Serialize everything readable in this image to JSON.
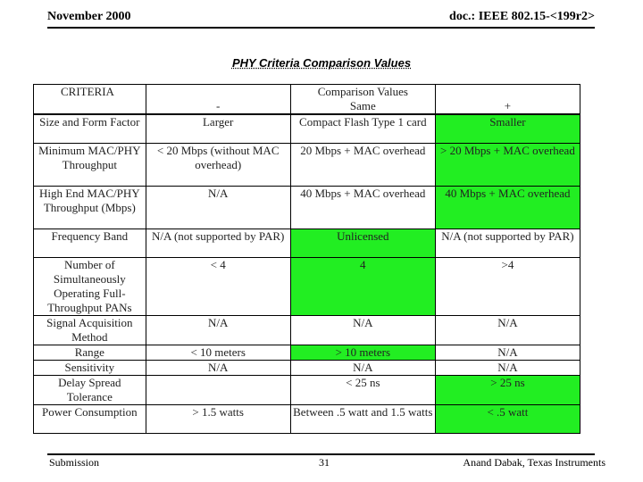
{
  "header": {
    "date": "November 2000",
    "doc_id": "doc.: IEEE 802.15-<199r2>"
  },
  "title": "PHY Criteria Comparison Values",
  "table": {
    "criteria_header": "CRITERIA",
    "comparison_header": "Comparison Values",
    "columns": [
      "-",
      "Same",
      "+"
    ],
    "rows": [
      {
        "criteria": "Size and Form Factor",
        "minus": "Larger",
        "same": "Compact Flash Type 1 card",
        "plus": "Smaller",
        "highlight": "plus"
      },
      {
        "criteria": "Minimum MAC/PHY Throughput",
        "minus": "< 20 Mbps (without MAC overhead)",
        "same": "20 Mbps + MAC overhead",
        "plus": "> 20 Mbps + MAC overhead",
        "highlight": "plus"
      },
      {
        "criteria": "High End MAC/PHY Throughput (Mbps)",
        "minus": "N/A",
        "same": "40 Mbps + MAC overhead",
        "plus": "40 Mbps + MAC overhead",
        "highlight": "plus"
      },
      {
        "criteria": "Frequency Band",
        "minus": "N/A (not supported by PAR)",
        "same": "Unlicensed",
        "plus": "N/A (not supported by PAR)",
        "highlight": "same"
      },
      {
        "criteria": "Number of Simultaneously Operating Full-Throughput PANs",
        "minus": "< 4",
        "same": "4",
        "plus": ">4",
        "highlight": "same"
      },
      {
        "criteria": "Signal Acquisition Method",
        "minus": "N/A",
        "same": "N/A",
        "plus": "N/A",
        "highlight": "none"
      },
      {
        "criteria": "Range",
        "minus": "< 10 meters",
        "same": "> 10 meters",
        "plus": "N/A",
        "highlight": "same"
      },
      {
        "criteria": "Sensitivity",
        "minus": "N/A",
        "same": "N/A",
        "plus": "N/A",
        "highlight": "none"
      },
      {
        "criteria": "Delay Spread Tolerance",
        "minus": "",
        "same": "< 25 ns",
        "plus": "> 25 ns",
        "highlight": "plus"
      },
      {
        "criteria": "Power Consumption",
        "minus": "> 1.5 watts",
        "same": "Between .5 watt and 1.5 watts",
        "plus": "< .5 watt",
        "highlight": "plus"
      }
    ]
  },
  "footer": {
    "left": "Submission",
    "page": "31",
    "author": "Anand Dabak, Texas Instruments"
  },
  "colors": {
    "highlight": "#22ee22"
  }
}
